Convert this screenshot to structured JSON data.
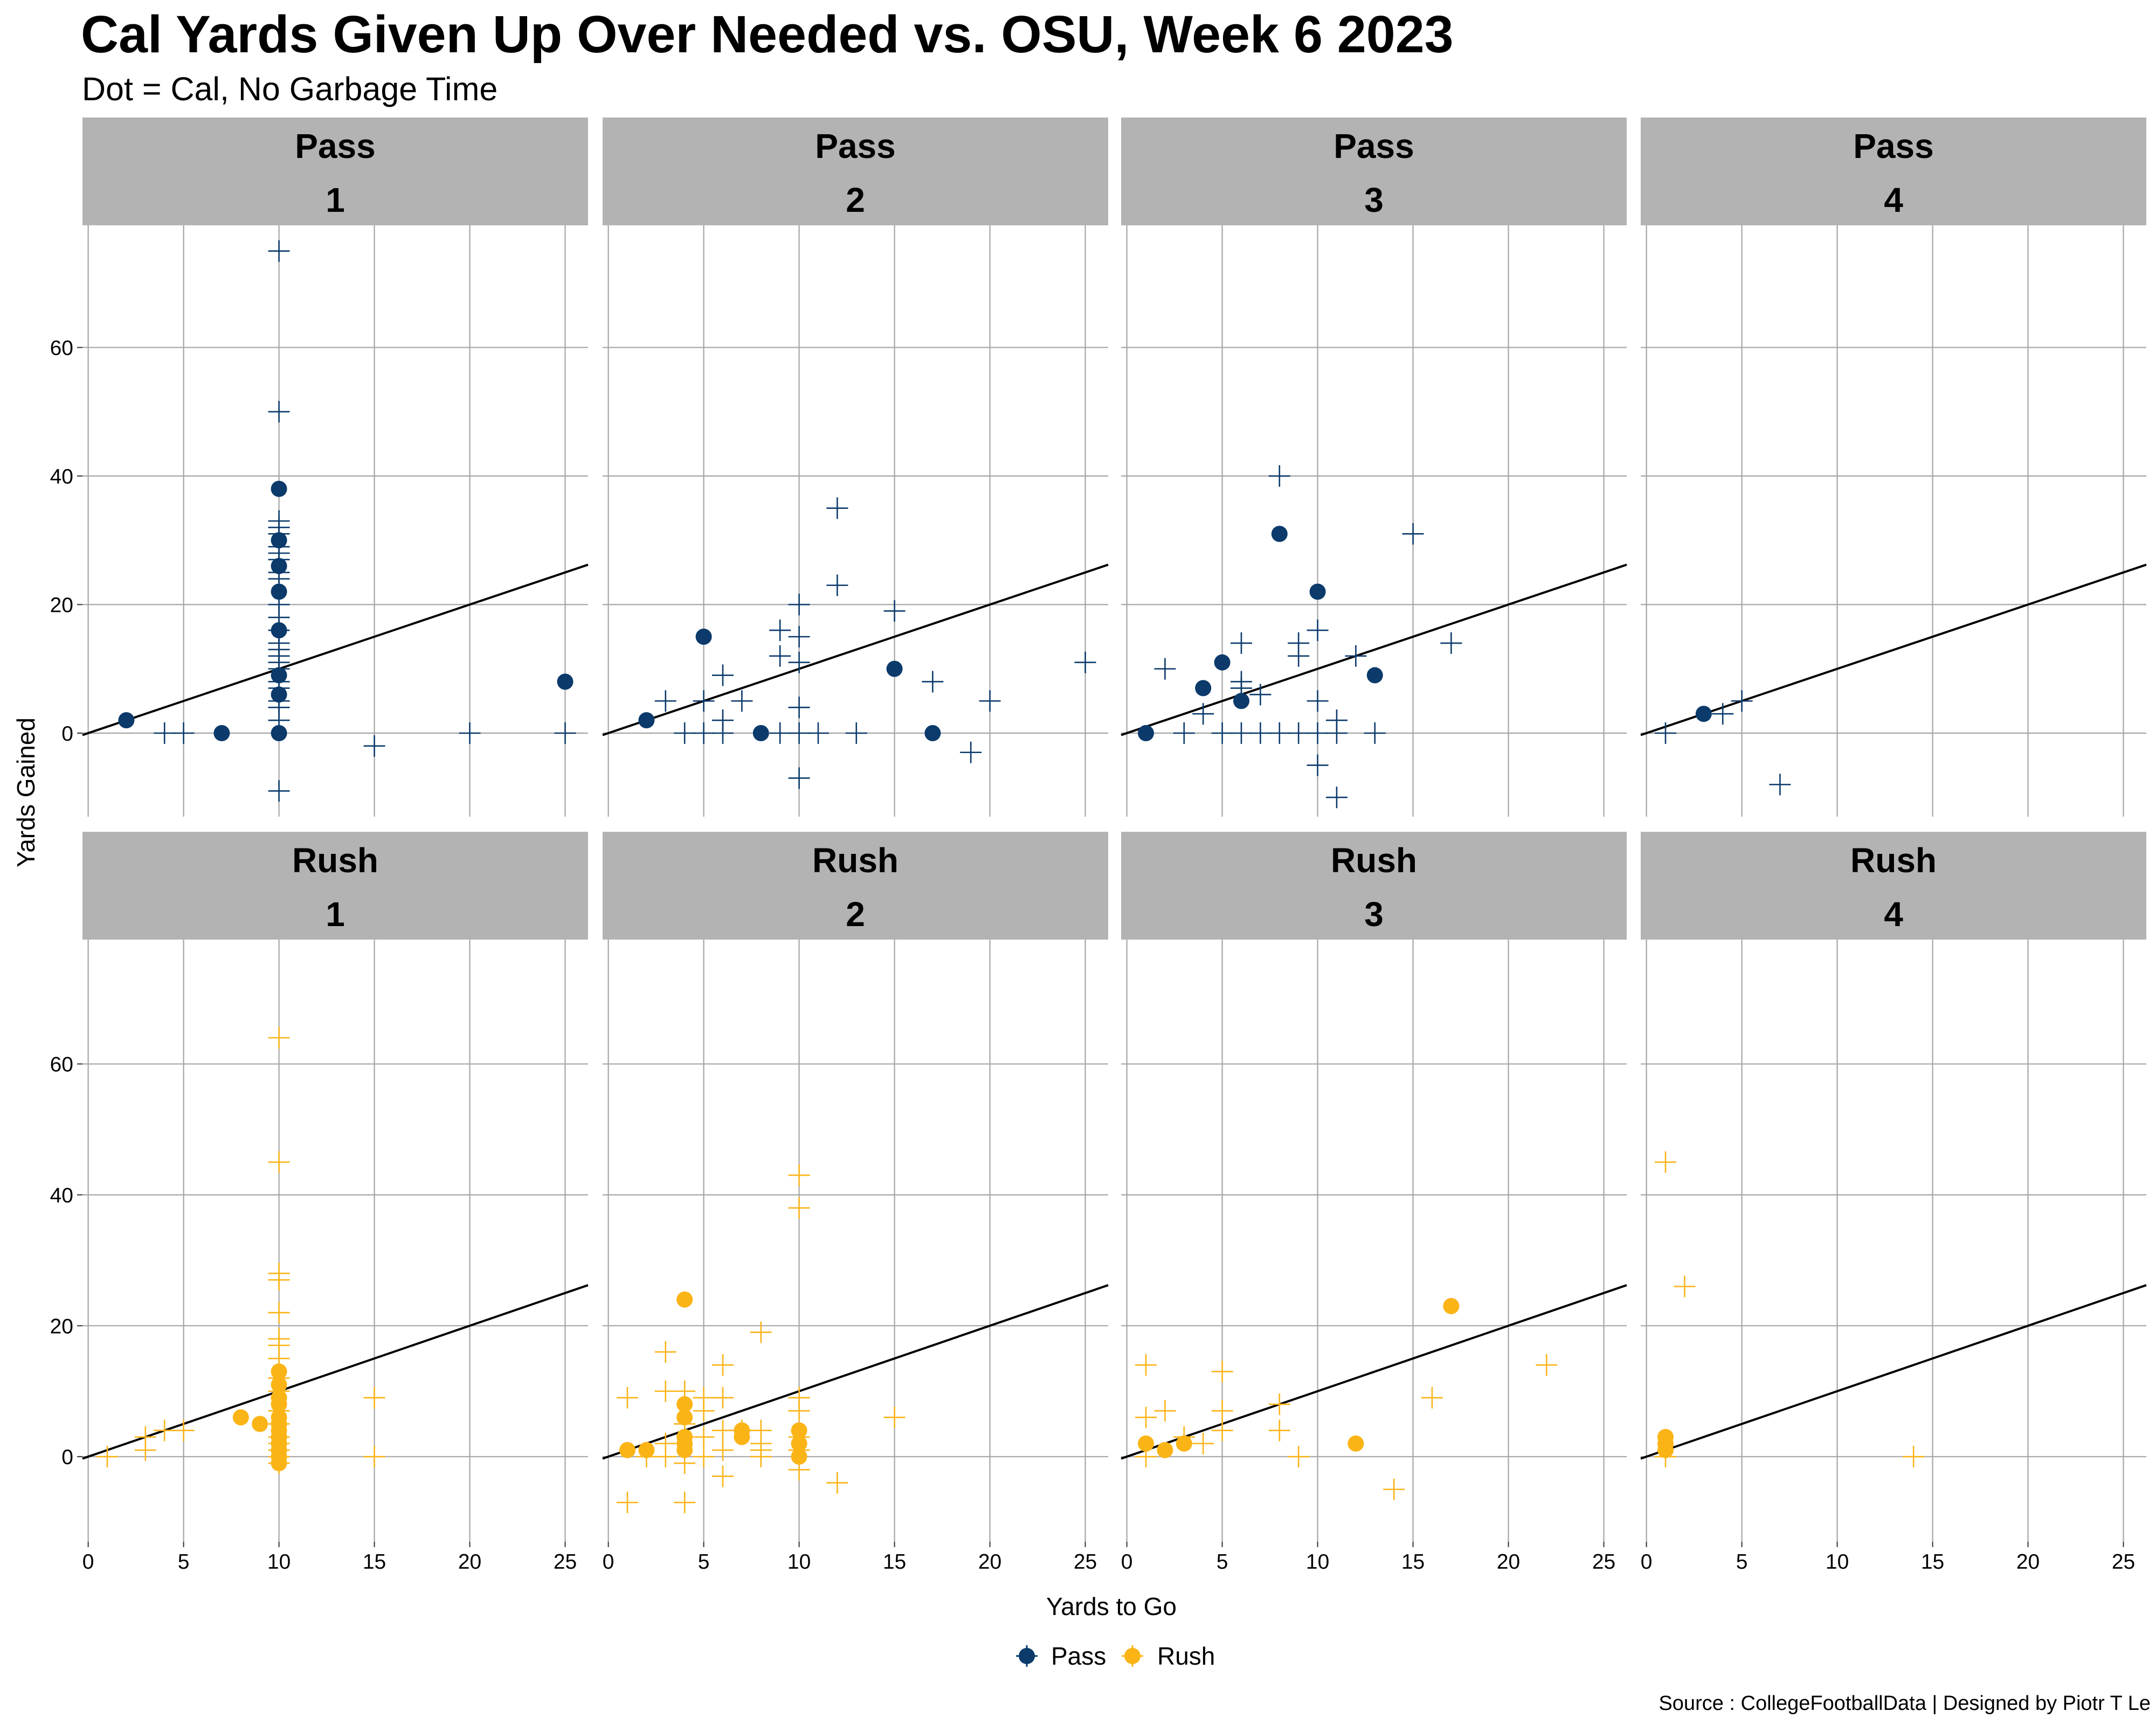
{
  "chart_data": {
    "type": "scatter",
    "title": "Cal Yards Given Up Over Needed vs. OSU, Week 6 2023",
    "subtitle": "Dot = Cal, No Garbage Time",
    "xlabel": "Yards to Go",
    "ylabel": "Yards Gained",
    "caption": "Source : CollegeFootballData | Designed by Piotr T Le",
    "xlim": [
      -0.3,
      26.2
    ],
    "ylim": [
      -13,
      79
    ],
    "x_ticks": [
      "0",
      "5",
      "10",
      "15",
      "20",
      "25"
    ],
    "y_ticks": [
      "0",
      "20",
      "40",
      "60"
    ],
    "grid": true,
    "reference_line": "y = x",
    "legend": {
      "position": "bottom",
      "entries": [
        {
          "label": "Pass",
          "color": "#0b3a6b"
        },
        {
          "label": "Rush",
          "color": "#fbb416"
        }
      ]
    },
    "facets": [
      {
        "play_type": "Pass",
        "down": "1",
        "color": "#0b3a6b",
        "cal": [
          [
            2,
            2
          ],
          [
            7,
            0
          ],
          [
            10,
            38
          ],
          [
            10,
            30
          ],
          [
            10,
            26
          ],
          [
            10,
            22
          ],
          [
            10,
            16
          ],
          [
            10,
            9
          ],
          [
            10,
            6
          ],
          [
            10,
            0
          ],
          [
            25,
            8
          ]
        ],
        "osu": [
          [
            4,
            0
          ],
          [
            5,
            0
          ],
          [
            10,
            75
          ],
          [
            10,
            50
          ],
          [
            10,
            33
          ],
          [
            10,
            32
          ],
          [
            10,
            31
          ],
          [
            10,
            29
          ],
          [
            10,
            28
          ],
          [
            10,
            27
          ],
          [
            10,
            25
          ],
          [
            10,
            24
          ],
          [
            10,
            20
          ],
          [
            10,
            18
          ],
          [
            10,
            16
          ],
          [
            10,
            14
          ],
          [
            10,
            13
          ],
          [
            10,
            12
          ],
          [
            10,
            11
          ],
          [
            10,
            10
          ],
          [
            10,
            8
          ],
          [
            10,
            7
          ],
          [
            10,
            5
          ],
          [
            10,
            4
          ],
          [
            10,
            2
          ],
          [
            10,
            -9
          ],
          [
            15,
            -2
          ],
          [
            20,
            0
          ],
          [
            25,
            0
          ]
        ]
      },
      {
        "play_type": "Pass",
        "down": "2",
        "color": "#0b3a6b",
        "cal": [
          [
            2,
            2
          ],
          [
            5,
            15
          ],
          [
            8,
            0
          ],
          [
            15,
            10
          ],
          [
            17,
            0
          ]
        ],
        "osu": [
          [
            3,
            5
          ],
          [
            4,
            0
          ],
          [
            5,
            0
          ],
          [
            5,
            5
          ],
          [
            6,
            9
          ],
          [
            6,
            2
          ],
          [
            6,
            0
          ],
          [
            7,
            5
          ],
          [
            9,
            16
          ],
          [
            9,
            12
          ],
          [
            9,
            0
          ],
          [
            10,
            20
          ],
          [
            10,
            15
          ],
          [
            10,
            11
          ],
          [
            10,
            4
          ],
          [
            10,
            0
          ],
          [
            10,
            -7
          ],
          [
            11,
            0
          ],
          [
            12,
            35
          ],
          [
            12,
            23
          ],
          [
            13,
            0
          ],
          [
            15,
            19
          ],
          [
            17,
            8
          ],
          [
            19,
            -3
          ],
          [
            20,
            5
          ],
          [
            25,
            11
          ]
        ]
      },
      {
        "play_type": "Pass",
        "down": "3",
        "color": "#0b3a6b",
        "cal": [
          [
            1,
            0
          ],
          [
            4,
            7
          ],
          [
            5,
            11
          ],
          [
            6,
            5
          ],
          [
            8,
            31
          ],
          [
            10,
            22
          ],
          [
            13,
            9
          ]
        ],
        "osu": [
          [
            2,
            10
          ],
          [
            3,
            0
          ],
          [
            4,
            3
          ],
          [
            5,
            0
          ],
          [
            6,
            14
          ],
          [
            6,
            8
          ],
          [
            6,
            7
          ],
          [
            6,
            0
          ],
          [
            7,
            6
          ],
          [
            7,
            0
          ],
          [
            8,
            40
          ],
          [
            8,
            0
          ],
          [
            9,
            14
          ],
          [
            9,
            12
          ],
          [
            9,
            0
          ],
          [
            10,
            16
          ],
          [
            10,
            5
          ],
          [
            10,
            0
          ],
          [
            10,
            -5
          ],
          [
            11,
            2
          ],
          [
            11,
            0
          ],
          [
            11,
            -10
          ],
          [
            12,
            12
          ],
          [
            13,
            0
          ],
          [
            15,
            31
          ],
          [
            17,
            14
          ]
        ]
      },
      {
        "play_type": "Pass",
        "down": "4",
        "color": "#0b3a6b",
        "cal": [
          [
            3,
            3
          ]
        ],
        "osu": [
          [
            1,
            0
          ],
          [
            4,
            3
          ],
          [
            5,
            5
          ],
          [
            7,
            -8
          ]
        ]
      },
      {
        "play_type": "Rush",
        "down": "1",
        "color": "#fbb416",
        "cal": [
          [
            8,
            6
          ],
          [
            9,
            5
          ],
          [
            10,
            13
          ],
          [
            10,
            11
          ],
          [
            10,
            9
          ],
          [
            10,
            8
          ],
          [
            10,
            6
          ],
          [
            10,
            5
          ],
          [
            10,
            4
          ],
          [
            10,
            3
          ],
          [
            10,
            2
          ],
          [
            10,
            1
          ],
          [
            10,
            0
          ],
          [
            10,
            -1
          ]
        ],
        "osu": [
          [
            1,
            0
          ],
          [
            3,
            3
          ],
          [
            3,
            1
          ],
          [
            4,
            4
          ],
          [
            5,
            4
          ],
          [
            10,
            64
          ],
          [
            10,
            45
          ],
          [
            10,
            28
          ],
          [
            10,
            27
          ],
          [
            10,
            22
          ],
          [
            10,
            18
          ],
          [
            10,
            17
          ],
          [
            10,
            15
          ],
          [
            10,
            12
          ],
          [
            10,
            10
          ],
          [
            10,
            7
          ],
          [
            10,
            5
          ],
          [
            10,
            3
          ],
          [
            10,
            2
          ],
          [
            10,
            1
          ],
          [
            10,
            0
          ],
          [
            10,
            -1
          ],
          [
            15,
            9
          ],
          [
            15,
            0
          ]
        ]
      },
      {
        "play_type": "Rush",
        "down": "2",
        "color": "#fbb416",
        "cal": [
          [
            1,
            1
          ],
          [
            2,
            1
          ],
          [
            4,
            24
          ],
          [
            4,
            8
          ],
          [
            4,
            6
          ],
          [
            4,
            3
          ],
          [
            4,
            2
          ],
          [
            4,
            1
          ],
          [
            7,
            4
          ],
          [
            7,
            3
          ],
          [
            10,
            4
          ],
          [
            10,
            2
          ],
          [
            10,
            0
          ]
        ],
        "osu": [
          [
            1,
            9
          ],
          [
            1,
            -7
          ],
          [
            2,
            0
          ],
          [
            3,
            16
          ],
          [
            3,
            10
          ],
          [
            3,
            2
          ],
          [
            3,
            0
          ],
          [
            4,
            10
          ],
          [
            4,
            5
          ],
          [
            4,
            -1
          ],
          [
            4,
            -7
          ],
          [
            5,
            9
          ],
          [
            5,
            7
          ],
          [
            5,
            3
          ],
          [
            5,
            0
          ],
          [
            6,
            14
          ],
          [
            6,
            9
          ],
          [
            6,
            4
          ],
          [
            6,
            1
          ],
          [
            6,
            -3
          ],
          [
            7,
            4
          ],
          [
            8,
            19
          ],
          [
            8,
            4
          ],
          [
            8,
            2
          ],
          [
            8,
            1
          ],
          [
            8,
            0
          ],
          [
            10,
            43
          ],
          [
            10,
            38
          ],
          [
            10,
            9
          ],
          [
            10,
            7
          ],
          [
            10,
            3
          ],
          [
            10,
            1
          ],
          [
            10,
            -2
          ],
          [
            12,
            -4
          ],
          [
            15,
            6
          ]
        ]
      },
      {
        "play_type": "Rush",
        "down": "3",
        "color": "#fbb416",
        "cal": [
          [
            1,
            2
          ],
          [
            2,
            1
          ],
          [
            3,
            2
          ],
          [
            12,
            2
          ],
          [
            17,
            23
          ]
        ],
        "osu": [
          [
            1,
            14
          ],
          [
            1,
            6
          ],
          [
            1,
            0
          ],
          [
            2,
            7
          ],
          [
            3,
            3
          ],
          [
            4,
            2
          ],
          [
            5,
            13
          ],
          [
            5,
            7
          ],
          [
            5,
            4
          ],
          [
            8,
            8
          ],
          [
            8,
            4
          ],
          [
            9,
            0
          ],
          [
            14,
            -5
          ],
          [
            16,
            9
          ],
          [
            22,
            14
          ]
        ]
      },
      {
        "play_type": "Rush",
        "down": "4",
        "color": "#fbb416",
        "cal": [
          [
            1,
            3
          ],
          [
            1,
            2
          ],
          [
            1,
            1
          ]
        ],
        "osu": [
          [
            1,
            45
          ],
          [
            1,
            0
          ],
          [
            2,
            26
          ],
          [
            14,
            0
          ]
        ]
      }
    ]
  }
}
